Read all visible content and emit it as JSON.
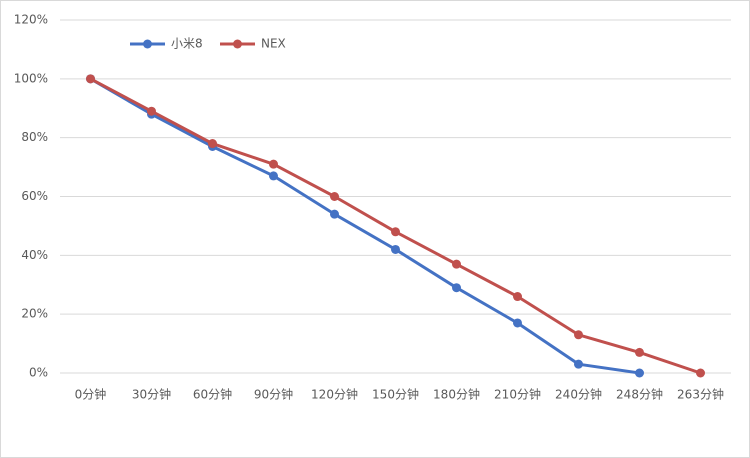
{
  "chart_data": {
    "type": "line",
    "categories": [
      "0分钟",
      "30分钟",
      "60分钟",
      "90分钟",
      "120分钟",
      "150分钟",
      "180分钟",
      "210分钟",
      "240分钟",
      "248分钟",
      "263分钟"
    ],
    "series": [
      {
        "name": "小米8",
        "color": "#4472c4",
        "values": [
          100,
          88,
          77,
          67,
          54,
          42,
          29,
          17,
          3,
          0,
          null
        ]
      },
      {
        "name": "NEX",
        "color": "#c0504d",
        "values": [
          100,
          89,
          78,
          71,
          60,
          48,
          37,
          26,
          13,
          7,
          0
        ]
      }
    ],
    "ylim": [
      0,
      120
    ],
    "yticks": [
      {
        "value": 0,
        "label": "0%"
      },
      {
        "value": 20,
        "label": "20%"
      },
      {
        "value": 40,
        "label": "40%"
      },
      {
        "value": 60,
        "label": "60%"
      },
      {
        "value": 80,
        "label": "80%"
      },
      {
        "value": 100,
        "label": "100%"
      },
      {
        "value": 120,
        "label": "120%"
      }
    ],
    "grid": true
  }
}
